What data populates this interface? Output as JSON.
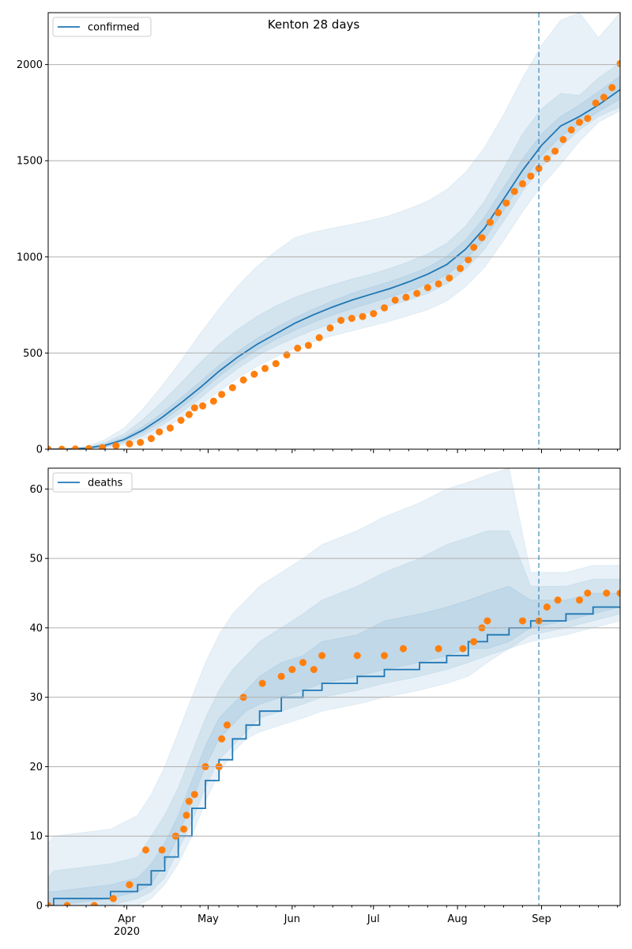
{
  "figure_title": "Kenton 28 days",
  "chart_data": [
    {
      "type": "line",
      "id": "confirmed",
      "title": "Kenton 28 days",
      "legend": {
        "label": "confirmed",
        "placement": "top-left"
      },
      "grid": "y",
      "x_type": "date",
      "xlim": [
        "2020-03-03",
        "2020-09-30"
      ],
      "ylim": [
        0,
        2270
      ],
      "y_ticks": [
        0,
        500,
        1000,
        1500,
        2000
      ],
      "forecast_start": "2020-08-31",
      "colors": {
        "line": "#1f77b4",
        "observed": "#ff7f0e",
        "band": "#1f77b4",
        "grid": "#b0b0b0"
      },
      "model_median": [
        [
          "2020-03-03",
          0
        ],
        [
          "2020-03-10",
          1
        ],
        [
          "2020-03-17",
          5
        ],
        [
          "2020-03-24",
          20
        ],
        [
          "2020-03-31",
          50
        ],
        [
          "2020-04-07",
          100
        ],
        [
          "2020-04-14",
          165
        ],
        [
          "2020-04-21",
          240
        ],
        [
          "2020-04-28",
          320
        ],
        [
          "2020-05-05",
          405
        ],
        [
          "2020-05-12",
          480
        ],
        [
          "2020-05-19",
          545
        ],
        [
          "2020-05-26",
          600
        ],
        [
          "2020-06-02",
          655
        ],
        [
          "2020-06-09",
          700
        ],
        [
          "2020-06-16",
          740
        ],
        [
          "2020-06-23",
          775
        ],
        [
          "2020-06-30",
          805
        ],
        [
          "2020-07-07",
          835
        ],
        [
          "2020-07-14",
          870
        ],
        [
          "2020-07-21",
          910
        ],
        [
          "2020-07-28",
          960
        ],
        [
          "2020-08-04",
          1040
        ],
        [
          "2020-08-11",
          1150
        ],
        [
          "2020-08-18",
          1300
        ],
        [
          "2020-08-25",
          1450
        ],
        [
          "2020-09-01",
          1580
        ],
        [
          "2020-09-08",
          1680
        ],
        [
          "2020-09-15",
          1730
        ],
        [
          "2020-09-22",
          1790
        ],
        [
          "2020-09-30",
          1870
        ]
      ],
      "bands": [
        {
          "level": "outer",
          "lower": [
            0,
            0,
            0,
            5,
            20,
            50,
            100,
            160,
            230,
            300,
            370,
            430,
            480,
            525,
            560,
            590,
            615,
            640,
            665,
            695,
            725,
            770,
            845,
            945,
            1085,
            1235,
            1370,
            1480,
            1600,
            1700,
            1760
          ],
          "upper": [
            1,
            3,
            15,
            50,
            110,
            210,
            330,
            460,
            600,
            730,
            850,
            950,
            1030,
            1100,
            1130,
            1150,
            1170,
            1190,
            1215,
            1250,
            1290,
            1350,
            1440,
            1570,
            1740,
            1930,
            2100,
            2230,
            2270,
            2140,
            2270
          ]
        },
        {
          "level": "middle",
          "lower": [
            0,
            0,
            2,
            10,
            32,
            70,
            125,
            190,
            265,
            345,
            420,
            485,
            535,
            580,
            620,
            655,
            685,
            715,
            745,
            775,
            810,
            860,
            935,
            1040,
            1185,
            1340,
            1470,
            1570,
            1660,
            1730,
            1780
          ],
          "upper": [
            1,
            2,
            10,
            35,
            80,
            155,
            245,
            345,
            450,
            545,
            625,
            690,
            745,
            790,
            825,
            855,
            885,
            910,
            940,
            975,
            1015,
            1070,
            1160,
            1290,
            1460,
            1640,
            1770,
            1850,
            1840,
            1930,
            2010
          ]
        },
        {
          "level": "inner",
          "lower": [
            0,
            0,
            3,
            14,
            40,
            85,
            145,
            215,
            295,
            378,
            452,
            516,
            570,
            618,
            660,
            698,
            730,
            760,
            790,
            822,
            858,
            906,
            984,
            1092,
            1240,
            1395,
            1525,
            1625,
            1690,
            1755,
            1820
          ],
          "upper": [
            1,
            1,
            7,
            27,
            62,
            118,
            188,
            268,
            350,
            436,
            510,
            576,
            632,
            684,
            730,
            772,
            810,
            842,
            872,
            906,
            946,
            1002,
            1088,
            1208,
            1362,
            1510,
            1640,
            1730,
            1790,
            1860,
            1940
          ]
        }
      ],
      "observed": [
        [
          "2020-03-03",
          0
        ],
        [
          "2020-03-08",
          0
        ],
        [
          "2020-03-13",
          1
        ],
        [
          "2020-03-18",
          3
        ],
        [
          "2020-03-23",
          8
        ],
        [
          "2020-03-28",
          18
        ],
        [
          "2020-04-02",
          28
        ],
        [
          "2020-04-06",
          35
        ],
        [
          "2020-04-10",
          55
        ],
        [
          "2020-04-13",
          90
        ],
        [
          "2020-04-17",
          110
        ],
        [
          "2020-04-21",
          150
        ],
        [
          "2020-04-24",
          180
        ],
        [
          "2020-04-26",
          215
        ],
        [
          "2020-04-29",
          225
        ],
        [
          "2020-05-03",
          250
        ],
        [
          "2020-05-06",
          285
        ],
        [
          "2020-05-10",
          320
        ],
        [
          "2020-05-14",
          360
        ],
        [
          "2020-05-18",
          390
        ],
        [
          "2020-05-22",
          420
        ],
        [
          "2020-05-26",
          445
        ],
        [
          "2020-05-30",
          490
        ],
        [
          "2020-06-03",
          525
        ],
        [
          "2020-06-07",
          540
        ],
        [
          "2020-06-11",
          580
        ],
        [
          "2020-06-15",
          630
        ],
        [
          "2020-06-19",
          670
        ],
        [
          "2020-06-23",
          680
        ],
        [
          "2020-06-27",
          690
        ],
        [
          "2020-07-01",
          705
        ],
        [
          "2020-07-05",
          735
        ],
        [
          "2020-07-09",
          775
        ],
        [
          "2020-07-13",
          790
        ],
        [
          "2020-07-17",
          810
        ],
        [
          "2020-07-21",
          840
        ],
        [
          "2020-07-25",
          860
        ],
        [
          "2020-07-29",
          890
        ],
        [
          "2020-08-02",
          940
        ],
        [
          "2020-08-05",
          985
        ],
        [
          "2020-08-07",
          1050
        ],
        [
          "2020-08-10",
          1100
        ],
        [
          "2020-08-13",
          1180
        ],
        [
          "2020-08-16",
          1230
        ],
        [
          "2020-08-19",
          1280
        ],
        [
          "2020-08-22",
          1340
        ],
        [
          "2020-08-25",
          1380
        ],
        [
          "2020-08-28",
          1420
        ],
        [
          "2020-08-31",
          1460
        ],
        [
          "2020-09-03",
          1510
        ],
        [
          "2020-09-06",
          1550
        ],
        [
          "2020-09-09",
          1610
        ],
        [
          "2020-09-12",
          1660
        ],
        [
          "2020-09-15",
          1700
        ],
        [
          "2020-09-18",
          1720
        ],
        [
          "2020-09-21",
          1800
        ],
        [
          "2020-09-24",
          1830
        ],
        [
          "2020-09-27",
          1880
        ],
        [
          "2020-09-30",
          2005
        ]
      ]
    },
    {
      "type": "line",
      "id": "deaths",
      "legend": {
        "label": "deaths",
        "placement": "top-left"
      },
      "grid": "y",
      "x_type": "date",
      "xlim": [
        "2020-03-03",
        "2020-09-30"
      ],
      "ylim": [
        0,
        63
      ],
      "y_ticks": [
        0,
        10,
        20,
        30,
        40,
        50,
        60
      ],
      "x_ticks": [
        {
          "date": "2020-04-01",
          "label": "Apr",
          "sublabel": "2020"
        },
        {
          "date": "2020-05-01",
          "label": "May"
        },
        {
          "date": "2020-06-01",
          "label": "Jun"
        },
        {
          "date": "2020-07-01",
          "label": "Jul"
        },
        {
          "date": "2020-08-01",
          "label": "Aug"
        },
        {
          "date": "2020-09-01",
          "label": "Sep"
        }
      ],
      "forecast_start": "2020-08-31",
      "colors": {
        "line": "#1f77b4",
        "observed": "#ff7f0e",
        "band": "#1f77b4",
        "grid": "#b0b0b0"
      },
      "model_median": [
        [
          "2020-03-03",
          0
        ],
        [
          "2020-03-05",
          1
        ],
        [
          "2020-03-26",
          2
        ],
        [
          "2020-04-05",
          3
        ],
        [
          "2020-04-10",
          5
        ],
        [
          "2020-04-15",
          7
        ],
        [
          "2020-04-20",
          10
        ],
        [
          "2020-04-25",
          14
        ],
        [
          "2020-04-30",
          18
        ],
        [
          "2020-05-05",
          21
        ],
        [
          "2020-05-10",
          24
        ],
        [
          "2020-05-15",
          26
        ],
        [
          "2020-05-20",
          28
        ],
        [
          "2020-05-28",
          30
        ],
        [
          "2020-06-05",
          31
        ],
        [
          "2020-06-12",
          32
        ],
        [
          "2020-06-25",
          33
        ],
        [
          "2020-07-05",
          34
        ],
        [
          "2020-07-18",
          35
        ],
        [
          "2020-07-28",
          36
        ],
        [
          "2020-08-05",
          38
        ],
        [
          "2020-08-12",
          39
        ],
        [
          "2020-08-20",
          40
        ],
        [
          "2020-08-28",
          41
        ],
        [
          "2020-09-10",
          42
        ],
        [
          "2020-09-20",
          43
        ],
        [
          "2020-09-30",
          43
        ]
      ],
      "bands": [
        {
          "level": "outer",
          "lower": [
            0,
            0,
            0,
            0,
            1,
            3,
            6,
            10,
            15,
            19,
            22,
            24,
            25,
            26,
            27,
            28,
            29,
            30,
            31,
            32,
            33,
            35,
            37,
            38,
            39,
            40,
            41
          ],
          "upper": [
            9,
            10,
            11,
            13,
            16,
            20,
            25,
            30,
            35,
            39,
            42,
            44,
            46,
            48,
            50,
            52,
            54,
            56,
            58,
            60,
            61,
            62,
            63,
            48,
            48,
            49,
            49
          ]
        },
        {
          "level": "middle",
          "lower": [
            0,
            0,
            0,
            1,
            2,
            4,
            8,
            12,
            17,
            21,
            23,
            25,
            27,
            28,
            29,
            30,
            31,
            32,
            33,
            34,
            35,
            36,
            37,
            39,
            40,
            41,
            42
          ],
          "upper": [
            4,
            5,
            6,
            7,
            10,
            13,
            17,
            22,
            27,
            31,
            34,
            36,
            38,
            40,
            42,
            44,
            46,
            48,
            50,
            52,
            53,
            54,
            54,
            46,
            46,
            47,
            47
          ]
        },
        {
          "level": "inner",
          "lower": [
            0,
            0,
            1,
            2,
            3,
            6,
            10,
            15,
            20,
            24,
            26,
            28,
            29,
            30,
            31,
            32,
            33,
            34,
            35,
            36,
            37,
            37,
            38,
            40,
            41,
            42,
            43
          ],
          "upper": [
            2,
            2,
            3,
            4,
            6,
            9,
            13,
            18,
            23,
            27,
            29,
            31,
            33,
            35,
            36,
            38,
            39,
            41,
            42,
            43,
            44,
            45,
            46,
            44,
            44,
            45,
            45
          ]
        }
      ],
      "observed": [
        [
          "2020-03-03",
          0
        ],
        [
          "2020-03-10",
          0
        ],
        [
          "2020-03-20",
          0
        ],
        [
          "2020-03-27",
          1
        ],
        [
          "2020-04-02",
          3
        ],
        [
          "2020-04-08",
          8
        ],
        [
          "2020-04-14",
          8
        ],
        [
          "2020-04-19",
          10
        ],
        [
          "2020-04-22",
          11
        ],
        [
          "2020-04-23",
          13
        ],
        [
          "2020-04-24",
          15
        ],
        [
          "2020-04-26",
          16
        ],
        [
          "2020-04-30",
          20
        ],
        [
          "2020-05-05",
          20
        ],
        [
          "2020-05-06",
          24
        ],
        [
          "2020-05-08",
          26
        ],
        [
          "2020-05-14",
          30
        ],
        [
          "2020-05-21",
          32
        ],
        [
          "2020-05-28",
          33
        ],
        [
          "2020-06-01",
          34
        ],
        [
          "2020-06-05",
          35
        ],
        [
          "2020-06-09",
          34
        ],
        [
          "2020-06-12",
          36
        ],
        [
          "2020-06-25",
          36
        ],
        [
          "2020-07-05",
          36
        ],
        [
          "2020-07-12",
          37
        ],
        [
          "2020-07-25",
          37
        ],
        [
          "2020-08-03",
          37
        ],
        [
          "2020-08-07",
          38
        ],
        [
          "2020-08-10",
          40
        ],
        [
          "2020-08-12",
          41
        ],
        [
          "2020-08-25",
          41
        ],
        [
          "2020-08-31",
          41
        ],
        [
          "2020-09-03",
          43
        ],
        [
          "2020-09-07",
          44
        ],
        [
          "2020-09-15",
          44
        ],
        [
          "2020-09-18",
          45
        ],
        [
          "2020-09-25",
          45
        ],
        [
          "2020-09-30",
          45
        ]
      ]
    }
  ]
}
